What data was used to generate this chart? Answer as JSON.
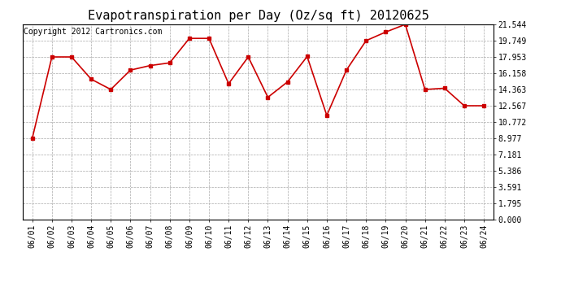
{
  "title": "Evapotranspiration per Day (Oz/sq ft) 20120625",
  "copyright": "Copyright 2012 Cartronics.com",
  "dates": [
    "06/01",
    "06/02",
    "06/03",
    "06/04",
    "06/05",
    "06/06",
    "06/07",
    "06/08",
    "06/09",
    "06/10",
    "06/11",
    "06/12",
    "06/13",
    "06/14",
    "06/15",
    "06/16",
    "06/17",
    "06/18",
    "06/19",
    "06/20",
    "06/21",
    "06/22",
    "06/23",
    "06/24"
  ],
  "values": [
    8.977,
    17.953,
    17.953,
    15.5,
    14.363,
    16.5,
    17.0,
    17.3,
    20.0,
    20.0,
    15.0,
    17.953,
    13.5,
    15.2,
    18.0,
    11.5,
    16.5,
    19.749,
    20.7,
    21.544,
    14.363,
    14.5,
    12.567,
    12.567
  ],
  "yticks": [
    0.0,
    1.795,
    3.591,
    5.386,
    7.181,
    8.977,
    10.772,
    12.567,
    14.363,
    16.158,
    17.953,
    19.749,
    21.544
  ],
  "ymin": 0.0,
  "ymax": 21.544,
  "line_color": "#cc0000",
  "marker": "s",
  "marker_size": 3,
  "bg_color": "#ffffff",
  "grid_color": "#aaaaaa",
  "title_fontsize": 11,
  "copyright_fontsize": 7,
  "tick_fontsize": 7,
  "ytick_fontsize": 7
}
